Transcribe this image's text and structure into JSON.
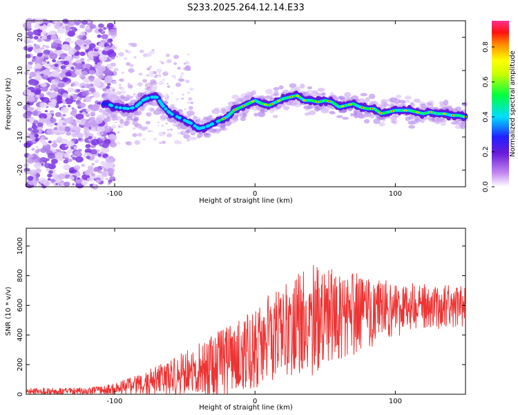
{
  "title": "S233.2025.264.12.14.E33",
  "chart_data": [
    {
      "type": "heatmap",
      "name": "spectrogram",
      "xlabel": "Height of straight line (km)",
      "ylabel": "Frequency (Hz)",
      "xlim": [
        -163,
        150
      ],
      "ylim": [
        -25,
        25
      ],
      "xticks": [
        -100,
        0,
        100
      ],
      "xtick_labels": [
        "-100",
        "0",
        "100"
      ],
      "yticks": [
        -20,
        -10,
        0,
        10,
        20
      ],
      "ytick_labels": [
        "-20",
        "-10",
        "0",
        "10",
        "20"
      ],
      "ridge": {
        "x": [
          -105,
          -100,
          -90,
          -85,
          -80,
          -75,
          -70,
          -65,
          -60,
          -55,
          -50,
          -45,
          -40,
          -35,
          -30,
          -25,
          -20,
          -15,
          -10,
          -5,
          0,
          5,
          10,
          15,
          20,
          25,
          30,
          35,
          40,
          45,
          50,
          55,
          60,
          65,
          70,
          75,
          80,
          85,
          90,
          95,
          100,
          105,
          110,
          115,
          120,
          125,
          130,
          135,
          140,
          145,
          150
        ],
        "y": [
          0,
          -1,
          -1.5,
          -1,
          1,
          2,
          2,
          -1,
          -3,
          -4,
          -5,
          -6,
          -7.5,
          -7,
          -6,
          -5,
          -4,
          -2,
          -1,
          0,
          1,
          0,
          -0.5,
          0.5,
          1.5,
          2,
          2.5,
          1,
          1,
          0.5,
          1,
          0.5,
          -1,
          -0.5,
          0,
          -1,
          -1.5,
          -1.5,
          -3,
          -2.5,
          -2,
          -2,
          -2,
          -2.5,
          -3,
          -2.5,
          -3,
          -3,
          -3.5,
          -3.5,
          -4
        ]
      },
      "colorbar": {
        "label": "Normalized spectral amplitude",
        "range": [
          0,
          0.95
        ],
        "ticks": [
          0.0,
          0.2,
          0.4,
          0.6,
          0.8
        ],
        "tick_labels": [
          "0.0",
          "0.2",
          "0.4",
          "0.6",
          "0.8"
        ]
      }
    },
    {
      "type": "line",
      "name": "snr",
      "xlabel": "Height of straight line (km)",
      "ylabel": "SNR (10 * v/v)",
      "xlim": [
        -163,
        150
      ],
      "ylim": [
        0,
        1120
      ],
      "xticks": [
        -100,
        0,
        100
      ],
      "xtick_labels": [
        "-100",
        "0",
        "100"
      ],
      "yticks": [
        0,
        200,
        400,
        600,
        800,
        1000
      ],
      "ytick_labels": [
        "0",
        "200",
        "400",
        "600",
        "800",
        "1000"
      ],
      "line_color": "#ee3333",
      "envelope": {
        "x": [
          -163,
          -140,
          -120,
          -110,
          -100,
          -90,
          -80,
          -70,
          -60,
          -50,
          -40,
          -30,
          -20,
          -10,
          0,
          10,
          20,
          30,
          40,
          50,
          60,
          70,
          80,
          90,
          100,
          110,
          120,
          130,
          140,
          150
        ],
        "mean": [
          20,
          20,
          22,
          25,
          35,
          50,
          70,
          90,
          110,
          140,
          170,
          200,
          230,
          270,
          320,
          380,
          430,
          470,
          500,
          520,
          540,
          540,
          550,
          560,
          570,
          580,
          580,
          590,
          590,
          600
        ],
        "spread": [
          25,
          25,
          28,
          35,
          50,
          70,
          90,
          120,
          150,
          180,
          210,
          250,
          280,
          300,
          330,
          360,
          380,
          420,
          450,
          400,
          360,
          330,
          300,
          260,
          220,
          200,
          190,
          180,
          170,
          170
        ]
      }
    }
  ]
}
